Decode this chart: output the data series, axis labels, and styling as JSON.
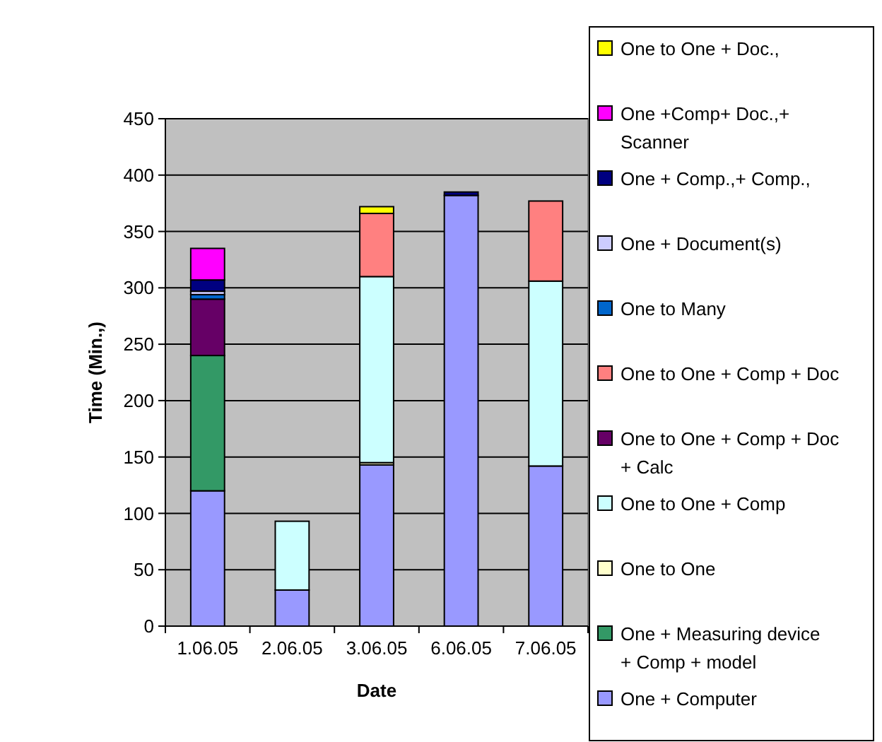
{
  "chart_data": {
    "type": "bar",
    "stacked": true,
    "xlabel": "Date",
    "ylabel": "Time (Min.,)",
    "categories": [
      "1.06.05",
      "2.06.05",
      "3.06.05",
      "6.06.05",
      "7.06.05"
    ],
    "ylim": [
      0,
      450
    ],
    "yticks": [
      0,
      50,
      100,
      150,
      200,
      250,
      300,
      350,
      400,
      450
    ],
    "grid": "y",
    "legend": "right",
    "series": [
      {
        "name": "One + Computer",
        "color": "#9999ff",
        "values": [
          120,
          32,
          143,
          382,
          142
        ]
      },
      {
        "name": "One + Measuring device + Comp + model",
        "color": "#339966",
        "values": [
          120,
          0,
          0,
          0,
          0
        ]
      },
      {
        "name": "One to One",
        "color": "#ffffcc",
        "values": [
          0,
          null,
          2,
          0,
          0
        ]
      },
      {
        "name": "One to One + Comp",
        "color": "#ccffff",
        "values": [
          0,
          61,
          165,
          0,
          164
        ]
      },
      {
        "name": "One to One + Comp + Doc + Calc",
        "color": "#660066",
        "values": [
          50,
          0,
          0,
          0,
          0
        ]
      },
      {
        "name": "One to One + Comp + Doc",
        "color": "#ff8080",
        "values": [
          0,
          0,
          56,
          0,
          71
        ]
      },
      {
        "name": "One to Many",
        "color": "#0066cc",
        "values": [
          4,
          0,
          0,
          0,
          0
        ]
      },
      {
        "name": "One + Document(s)",
        "color": "#ccccff",
        "values": [
          3,
          0,
          0,
          0,
          0
        ]
      },
      {
        "name": "One + Comp.,+ Comp.,",
        "color": "#000080",
        "values": [
          10,
          0,
          0,
          3,
          0
        ]
      },
      {
        "name": "One +Comp+ Doc.,+ Scanner",
        "color": "#ff00ff",
        "values": [
          28,
          0,
          0,
          0,
          0
        ]
      },
      {
        "name": "One to One + Doc.,",
        "color": "#ffff00",
        "values": [
          0,
          0,
          6,
          0,
          0
        ]
      }
    ]
  }
}
